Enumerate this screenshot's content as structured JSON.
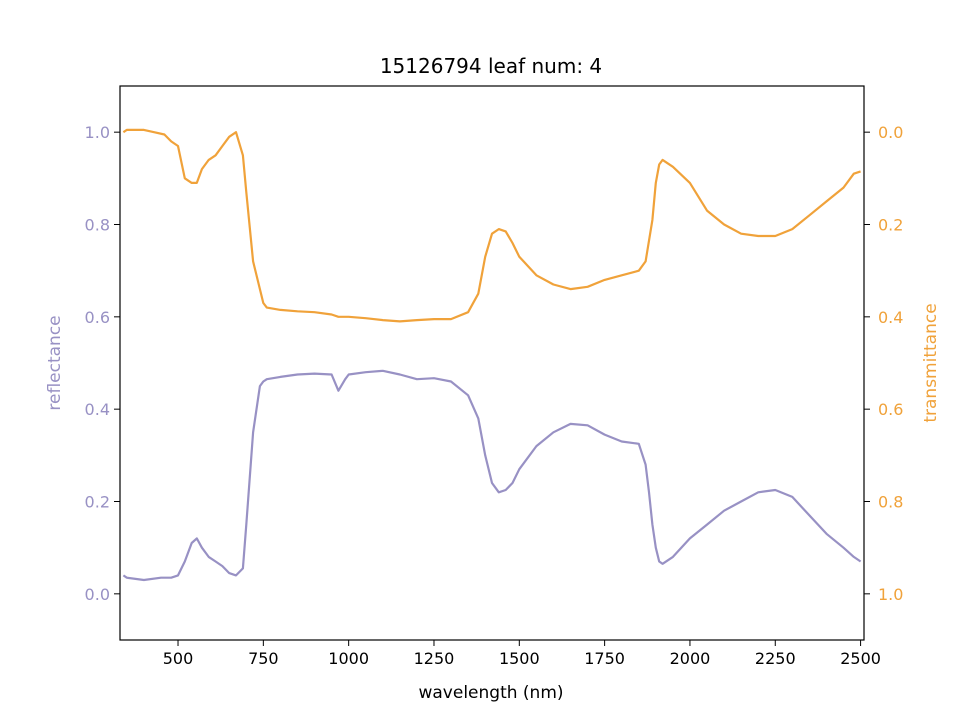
{
  "chart_data": {
    "type": "line",
    "title": "15126794 leaf num: 4",
    "xlabel": "wavelength (nm)",
    "ylabel_left": "reflectance",
    "ylabel_right": "transmittance",
    "xlim": [
      330,
      2510
    ],
    "ylim_left": [
      -0.1,
      1.1
    ],
    "ylim_right_inverted": [
      1.1,
      -0.1
    ],
    "x_ticks": [
      500,
      750,
      1000,
      1250,
      1500,
      1750,
      2000,
      2250,
      2500
    ],
    "y_ticks_left": [
      0.0,
      0.2,
      0.4,
      0.6,
      0.8,
      1.0
    ],
    "y_ticks_right": [
      0.0,
      0.2,
      0.4,
      0.6,
      0.8,
      1.0
    ],
    "grid": false,
    "colors": {
      "reflectance": "#9891c4",
      "transmittance": "#f0a23a",
      "axes": "#000000"
    },
    "series": [
      {
        "axis": "left",
        "x": [
          340,
          350,
          400,
          450,
          480,
          500,
          520,
          540,
          555,
          570,
          590,
          610,
          630,
          650,
          670,
          690,
          700,
          720,
          740,
          750,
          760,
          800,
          850,
          900,
          950,
          970,
          990,
          1000,
          1050,
          1100,
          1150,
          1200,
          1250,
          1300,
          1350,
          1380,
          1400,
          1420,
          1440,
          1460,
          1480,
          1500,
          1550,
          1600,
          1650,
          1700,
          1750,
          1800,
          1850,
          1870,
          1880,
          1890,
          1900,
          1910,
          1920,
          1950,
          2000,
          2050,
          2100,
          2150,
          2200,
          2250,
          2300,
          2350,
          2400,
          2450,
          2480,
          2500
        ],
        "y": [
          0.04,
          0.035,
          0.03,
          0.035,
          0.035,
          0.04,
          0.07,
          0.11,
          0.12,
          0.1,
          0.08,
          0.07,
          0.06,
          0.045,
          0.04,
          0.055,
          0.15,
          0.35,
          0.45,
          0.46,
          0.465,
          0.47,
          0.475,
          0.477,
          0.475,
          0.44,
          0.465,
          0.475,
          0.48,
          0.483,
          0.475,
          0.465,
          0.467,
          0.46,
          0.43,
          0.38,
          0.3,
          0.24,
          0.22,
          0.225,
          0.24,
          0.27,
          0.32,
          0.35,
          0.368,
          0.365,
          0.345,
          0.33,
          0.325,
          0.28,
          0.22,
          0.15,
          0.1,
          0.07,
          0.065,
          0.08,
          0.12,
          0.15,
          0.18,
          0.2,
          0.22,
          0.225,
          0.21,
          0.17,
          0.13,
          0.1,
          0.08,
          0.07
        ]
      },
      {
        "axis": "right",
        "x": [
          340,
          350,
          400,
          430,
          460,
          480,
          500,
          520,
          540,
          555,
          570,
          590,
          610,
          630,
          650,
          670,
          690,
          700,
          720,
          740,
          750,
          760,
          800,
          850,
          900,
          950,
          970,
          1000,
          1050,
          1100,
          1150,
          1200,
          1250,
          1300,
          1350,
          1380,
          1400,
          1420,
          1440,
          1460,
          1480,
          1500,
          1550,
          1600,
          1650,
          1700,
          1750,
          1800,
          1850,
          1870,
          1890,
          1900,
          1910,
          1920,
          1950,
          2000,
          2050,
          2100,
          2150,
          2200,
          2250,
          2300,
          2350,
          2400,
          2450,
          2480,
          2500
        ],
        "y": [
          0.0,
          -0.005,
          -0.005,
          0.0,
          0.005,
          0.02,
          0.03,
          0.1,
          0.11,
          0.11,
          0.08,
          0.06,
          0.05,
          0.03,
          0.01,
          0.0,
          0.05,
          0.13,
          0.28,
          0.34,
          0.37,
          0.38,
          0.385,
          0.388,
          0.39,
          0.395,
          0.4,
          0.4,
          0.403,
          0.407,
          0.41,
          0.407,
          0.405,
          0.405,
          0.39,
          0.35,
          0.27,
          0.22,
          0.21,
          0.215,
          0.24,
          0.27,
          0.31,
          0.33,
          0.34,
          0.335,
          0.32,
          0.31,
          0.3,
          0.28,
          0.19,
          0.11,
          0.07,
          0.06,
          0.075,
          0.11,
          0.17,
          0.2,
          0.22,
          0.225,
          0.225,
          0.21,
          0.18,
          0.15,
          0.12,
          0.09,
          0.085
        ]
      }
    ]
  }
}
